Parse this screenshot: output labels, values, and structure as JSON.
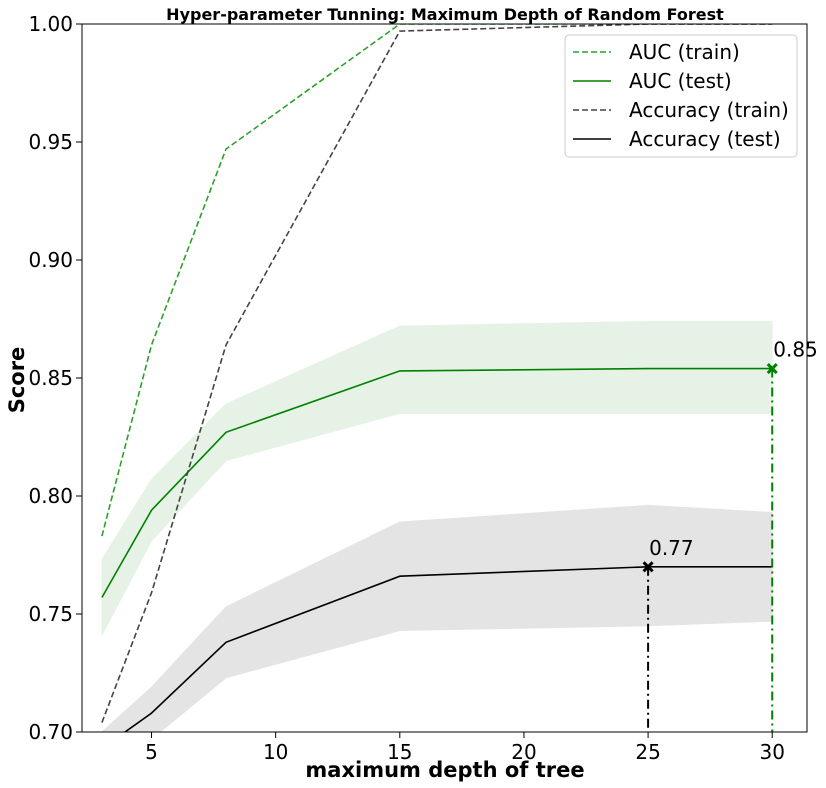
{
  "chart_data": {
    "type": "line",
    "title": "Hyper-parameter Tunning: Maximum Depth of Random Forest",
    "xlabel": "maximum depth of tree",
    "ylabel": "Score",
    "xlim": [
      2.2,
      31.4
    ],
    "ylim": [
      0.7,
      1.0
    ],
    "xticks": [
      5,
      10,
      15,
      20,
      25,
      30
    ],
    "xtick_labels": [
      "5",
      "10",
      "15",
      "20",
      "25",
      "30"
    ],
    "yticks": [
      0.7,
      0.75,
      0.8,
      0.85,
      0.9,
      0.95,
      1.0
    ],
    "ytick_labels": [
      "0.70",
      "0.75",
      "0.80",
      "0.85",
      "0.90",
      "0.95",
      "1.00"
    ],
    "x": [
      3,
      5,
      8,
      15,
      25,
      30
    ],
    "legend_position": "top-right",
    "series": [
      {
        "name": "AUC (train)",
        "color": "#2ca02c",
        "linestyle": "dashed",
        "values": [
          0.783,
          0.864,
          0.947,
          1.0,
          1.0,
          1.0
        ]
      },
      {
        "name": "AUC (test)",
        "color": "#008000",
        "linestyle": "solid",
        "values": [
          0.757,
          0.794,
          0.827,
          0.853,
          0.854,
          0.854
        ],
        "band_upper": [
          0.773,
          0.807,
          0.839,
          0.872,
          0.874,
          0.874
        ],
        "band_lower": [
          0.741,
          0.781,
          0.815,
          0.835,
          0.835,
          0.835
        ],
        "band_color": "#e6f2e6"
      },
      {
        "name": "Accuracy (train)",
        "color": "#444444",
        "linestyle": "dashed",
        "values": [
          0.704,
          0.759,
          0.864,
          0.997,
          1.0,
          1.0
        ]
      },
      {
        "name": "Accuracy (test)",
        "color": "#000000",
        "linestyle": "solid",
        "values": [
          0.693,
          0.708,
          0.738,
          0.766,
          0.77,
          0.77
        ],
        "band_upper": [
          0.7,
          0.719,
          0.753,
          0.789,
          0.796,
          0.793
        ],
        "band_lower": [
          0.686,
          0.697,
          0.723,
          0.743,
          0.745,
          0.747
        ],
        "band_color": "#e4e4e4"
      }
    ],
    "annotations": [
      {
        "x": 30,
        "y": 0.854,
        "label": "0.85",
        "color": "#008000",
        "line_style": "dash-dot"
      },
      {
        "x": 25,
        "y": 0.77,
        "label": "0.77",
        "color": "#000000",
        "line_style": "dash-dot"
      }
    ]
  }
}
